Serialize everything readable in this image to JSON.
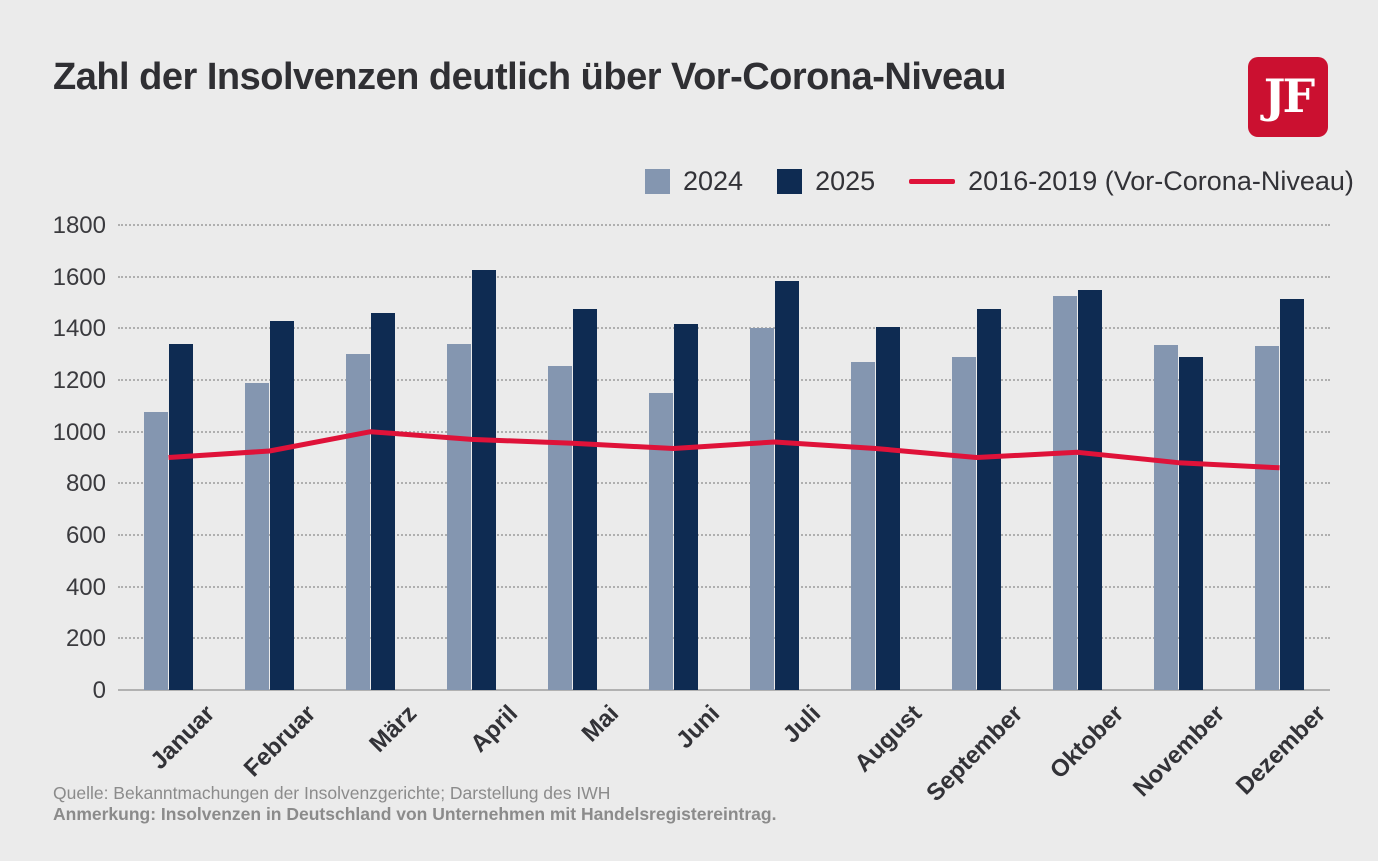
{
  "title": "Zahl der Insolvenzen deutlich über Vor-Corona-Niveau",
  "logo": {
    "text": "JF",
    "background": "#CB1030",
    "foreground": "#FFFFFF"
  },
  "legend": {
    "items": [
      {
        "label": "2024",
        "swatch": "square",
        "color": "#8496B0"
      },
      {
        "label": "2025",
        "swatch": "square",
        "color": "#0E2B52"
      },
      {
        "label": "2016-2019 (Vor-Corona-Niveau)",
        "swatch": "line",
        "color": "#DF1239"
      }
    ]
  },
  "chart_data": {
    "type": "bar",
    "title": "Zahl der Insolvenzen deutlich über Vor-Corona-Niveau",
    "categories": [
      "Januar",
      "Februar",
      "März",
      "April",
      "Mai",
      "Juni",
      "Juli",
      "August",
      "September",
      "Oktober",
      "November",
      "Dezember"
    ],
    "series": [
      {
        "name": "2024",
        "type": "bar",
        "color": "#8496B0",
        "values": [
          1075,
          1190,
          1300,
          1340,
          1255,
          1150,
          1400,
          1270,
          1290,
          1525,
          1335,
          1330
        ]
      },
      {
        "name": "2025",
        "type": "bar",
        "color": "#0E2B52",
        "values": [
          1340,
          1430,
          1460,
          1625,
          1475,
          1415,
          1585,
          1405,
          1475,
          1550,
          1290,
          1515
        ]
      },
      {
        "name": "2016-2019 (Vor-Corona-Niveau)",
        "type": "line",
        "color": "#DF1239",
        "values": [
          900,
          925,
          1000,
          970,
          955,
          935,
          960,
          935,
          900,
          920,
          880,
          860
        ]
      }
    ],
    "xlabel": "",
    "ylabel": "",
    "ylim": [
      0,
      1800
    ],
    "ytick_step": 200,
    "grid": "horizontal-dotted",
    "legend_position": "top-right"
  },
  "footer": {
    "source": "Quelle: Bekanntmachungen der Insolvenzgerichte; Darstellung des IWH",
    "note": "Anmerkung: Insolvenzen in Deutschland von Unternehmen mit Handelsregistereintrag."
  }
}
